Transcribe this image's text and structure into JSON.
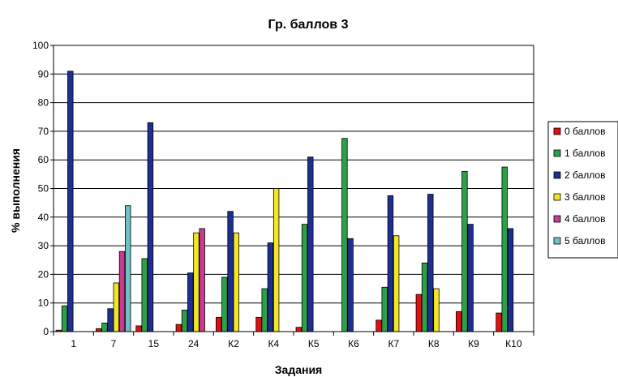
{
  "chart_data": {
    "type": "bar",
    "title": "Гр. баллов 3",
    "xlabel": "Задания",
    "ylabel": "% выполнения",
    "ylim": [
      0,
      100
    ],
    "yticks": [
      0,
      10,
      20,
      30,
      40,
      50,
      60,
      70,
      80,
      90,
      100
    ],
    "grid": true,
    "legend_position": "right",
    "categories": [
      "1",
      "7",
      "15",
      "24",
      "К2",
      "К4",
      "К5",
      "К6",
      "К7",
      "К8",
      "К9",
      "К10"
    ],
    "series": [
      {
        "name": "0 баллов",
        "color": "#e01010",
        "values": [
          0.5,
          1,
          2,
          2.5,
          5,
          5,
          1.5,
          0,
          4,
          13,
          7,
          6.5
        ]
      },
      {
        "name": "1 баллов",
        "color": "#2da04a",
        "values": [
          9,
          3,
          25.5,
          7.5,
          19,
          15,
          37.5,
          67.5,
          15.5,
          24,
          56,
          57.5
        ]
      },
      {
        "name": "2 баллов",
        "color": "#1f2f8f",
        "values": [
          91,
          8,
          73,
          20.5,
          42,
          31,
          61,
          32.5,
          47.5,
          48,
          37.5,
          36
        ]
      },
      {
        "name": "3 баллов",
        "color": "#f2e627",
        "values": [
          0,
          17,
          0,
          34.5,
          34.5,
          50,
          0,
          0,
          33.5,
          15,
          0,
          0
        ]
      },
      {
        "name": "4 баллов",
        "color": "#c93a91",
        "values": [
          0,
          28,
          0,
          36,
          0,
          0,
          0,
          0,
          0,
          0,
          0,
          0
        ]
      },
      {
        "name": "5 баллов",
        "color": "#6fc1c6",
        "values": [
          0,
          44,
          0,
          0,
          0,
          0,
          0,
          0,
          0,
          0,
          0,
          0
        ]
      }
    ]
  }
}
